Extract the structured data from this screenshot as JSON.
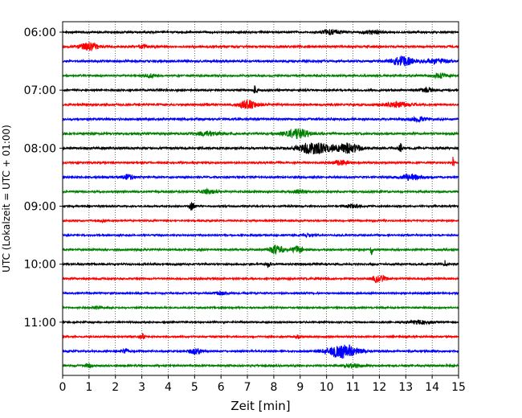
{
  "chart_data": {
    "type": "line",
    "subtype": "seismic-helicorder",
    "xlabel": "Zeit  [min]",
    "ylabel": "UTC (Lokalzeit = UTC + 01:00)",
    "xlim": [
      0,
      15
    ],
    "x_ticks": [
      "0",
      "1",
      "2",
      "3",
      "4",
      "5",
      "6",
      "7",
      "8",
      "9",
      "10",
      "11",
      "12",
      "13",
      "14",
      "15"
    ],
    "y_tick_labels": [
      "06:00",
      "07:00",
      "08:00",
      "09:00",
      "10:00",
      "11:00"
    ],
    "grid": "vertical dotted at each minute",
    "trace_colors": [
      "#000000",
      "#ff0000",
      "#0000ff",
      "#008000"
    ],
    "trace_interval_minutes": 15,
    "traces": [
      {
        "start": "06:00",
        "color": "#000000",
        "amplitude": 0.35,
        "events": [
          [
            10.2,
            0.7,
            0.6
          ],
          [
            11.7,
            0.7,
            0.4
          ]
        ]
      },
      {
        "start": "06:15",
        "color": "#ff0000",
        "amplitude": 0.4,
        "events": [
          [
            1.0,
            0.7,
            0.8
          ],
          [
            3.0,
            0.4,
            0.3
          ]
        ]
      },
      {
        "start": "06:30",
        "color": "#0000ff",
        "amplitude": 0.4,
        "events": [
          [
            12.9,
            0.9,
            0.9
          ],
          [
            14.2,
            0.8,
            0.5
          ]
        ]
      },
      {
        "start": "06:45",
        "color": "#008000",
        "amplitude": 0.35,
        "events": [
          [
            3.3,
            0.4,
            0.4
          ],
          [
            14.3,
            0.6,
            0.5
          ]
        ]
      },
      {
        "start": "07:00",
        "color": "#000000",
        "amplitude": 0.35,
        "events": [
          [
            7.3,
            0.15,
            1.0
          ],
          [
            13.8,
            0.5,
            0.4
          ]
        ]
      },
      {
        "start": "07:15",
        "color": "#ff0000",
        "amplitude": 0.4,
        "events": [
          [
            7.0,
            0.7,
            0.9
          ],
          [
            12.7,
            1.0,
            0.5
          ]
        ]
      },
      {
        "start": "07:30",
        "color": "#0000ff",
        "amplitude": 0.4,
        "events": [
          [
            13.5,
            0.6,
            0.4
          ]
        ]
      },
      {
        "start": "07:45",
        "color": "#008000",
        "amplitude": 0.4,
        "events": [
          [
            8.9,
            0.9,
            1.0
          ],
          [
            5.5,
            1.0,
            0.4
          ]
        ]
      },
      {
        "start": "08:00",
        "color": "#000000",
        "amplitude": 0.4,
        "events": [
          [
            9.5,
            1.2,
            1.3
          ],
          [
            10.8,
            1.0,
            1.1
          ],
          [
            12.8,
            0.15,
            1.0
          ]
        ]
      },
      {
        "start": "08:15",
        "color": "#ff0000",
        "amplitude": 0.35,
        "events": [
          [
            10.5,
            0.6,
            0.5
          ],
          [
            14.8,
            0.05,
            1.6
          ]
        ]
      },
      {
        "start": "08:30",
        "color": "#0000ff",
        "amplitude": 0.35,
        "events": [
          [
            2.5,
            0.5,
            0.5
          ],
          [
            13.2,
            0.8,
            0.6
          ]
        ]
      },
      {
        "start": "08:45",
        "color": "#008000",
        "amplitude": 0.35,
        "events": [
          [
            5.5,
            0.8,
            0.4
          ],
          [
            9.0,
            0.5,
            0.4
          ]
        ]
      },
      {
        "start": "09:00",
        "color": "#000000",
        "amplitude": 0.3,
        "events": [
          [
            4.9,
            0.2,
            0.8
          ],
          [
            11.0,
            0.5,
            0.4
          ]
        ]
      },
      {
        "start": "09:15",
        "color": "#ff0000",
        "amplitude": 0.3,
        "events": [
          [
            1.5,
            0.3,
            0.3
          ]
        ]
      },
      {
        "start": "09:30",
        "color": "#0000ff",
        "amplitude": 0.3,
        "events": [
          [
            9.3,
            0.4,
            0.3
          ]
        ]
      },
      {
        "start": "09:45",
        "color": "#008000",
        "amplitude": 0.35,
        "events": [
          [
            8.1,
            0.5,
            1.1
          ],
          [
            8.9,
            0.4,
            0.8
          ],
          [
            11.7,
            0.1,
            1.0
          ]
        ]
      },
      {
        "start": "10:00",
        "color": "#000000",
        "amplitude": 0.35,
        "events": [
          [
            7.8,
            0.15,
            0.8
          ],
          [
            14.5,
            0.1,
            0.8
          ]
        ]
      },
      {
        "start": "10:15",
        "color": "#ff0000",
        "amplitude": 0.35,
        "events": [
          [
            12.0,
            0.5,
            0.9
          ]
        ]
      },
      {
        "start": "10:30",
        "color": "#0000ff",
        "amplitude": 0.3,
        "events": [
          [
            6.0,
            0.6,
            0.3
          ]
        ]
      },
      {
        "start": "10:45",
        "color": "#008000",
        "amplitude": 0.3,
        "events": [
          [
            1.3,
            0.3,
            0.3
          ]
        ]
      },
      {
        "start": "11:00",
        "color": "#000000",
        "amplitude": 0.3,
        "events": [
          [
            13.5,
            1.0,
            0.4
          ]
        ]
      },
      {
        "start": "11:15",
        "color": "#ff0000",
        "amplitude": 0.3,
        "events": [
          [
            3.0,
            0.2,
            0.6
          ],
          [
            8.9,
            0.2,
            0.5
          ]
        ]
      },
      {
        "start": "11:30",
        "color": "#0000ff",
        "amplitude": 0.35,
        "events": [
          [
            10.6,
            1.2,
            1.5
          ],
          [
            2.4,
            0.3,
            0.4
          ],
          [
            5.0,
            0.5,
            0.6
          ]
        ]
      },
      {
        "start": "11:45",
        "color": "#008000",
        "amplitude": 0.35,
        "events": [
          [
            1.0,
            0.3,
            0.4
          ],
          [
            11.0,
            0.8,
            0.4
          ]
        ]
      }
    ]
  }
}
